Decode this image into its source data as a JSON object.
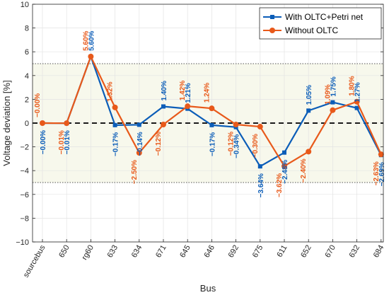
{
  "chart_data": {
    "type": "line",
    "xlabel": "Bus",
    "ylabel": "Voltage deviation [%]",
    "ylim": [
      -10,
      10
    ],
    "yticks": [
      -10,
      -8,
      -6,
      -4,
      -2,
      0,
      2,
      4,
      6,
      8,
      10
    ],
    "grid": true,
    "legend_position": "top-right",
    "categories": [
      "sourcebus",
      "650",
      "rg60",
      "633",
      "634",
      "671",
      "645",
      "646",
      "692",
      "675",
      "611",
      "652",
      "670",
      "632",
      "684"
    ],
    "reference_lines": [
      5,
      -5
    ],
    "zero_line": 0,
    "colors": {
      "with_oltc": "#0b5db8",
      "without_oltc": "#e8591a"
    },
    "series": [
      {
        "name": "With OLTC+Petri net",
        "marker": "square",
        "values": [
          0,
          -0.01,
          5.6,
          -0.17,
          -0.14,
          1.4,
          1.21,
          -0.17,
          -0.34,
          -3.64,
          -2.48,
          1.05,
          1.75,
          1.27,
          -2.69
        ],
        "labels": [
          "−0.00%",
          "−0.01%",
          "5.60%",
          "−0.17%",
          "−0.14%",
          "1.40%",
          "1.21%",
          "−0.17%",
          "−0.34%",
          "−3.64%",
          "−2.48%",
          "1.05%",
          "1.75%",
          "1.27%",
          "−2.69%"
        ]
      },
      {
        "name": "Without OLTC",
        "marker": "circle",
        "values": [
          0,
          -0.01,
          5.6,
          1.32,
          -2.5,
          -0.12,
          1.42,
          1.24,
          -0.12,
          -0.3,
          -3.62,
          -2.4,
          1.09,
          1.8,
          -2.63
        ],
        "labels": [
          "−0.00%",
          "−0.01%",
          "5.60%",
          "1.32%",
          "−2.50%",
          "−0.12%",
          "1.42%",
          "1.24%",
          "−0.12%",
          "−0.30%",
          "−3.62%",
          "−2.40%",
          "1.09%",
          "1.80%",
          "−2.63%"
        ]
      }
    ]
  }
}
